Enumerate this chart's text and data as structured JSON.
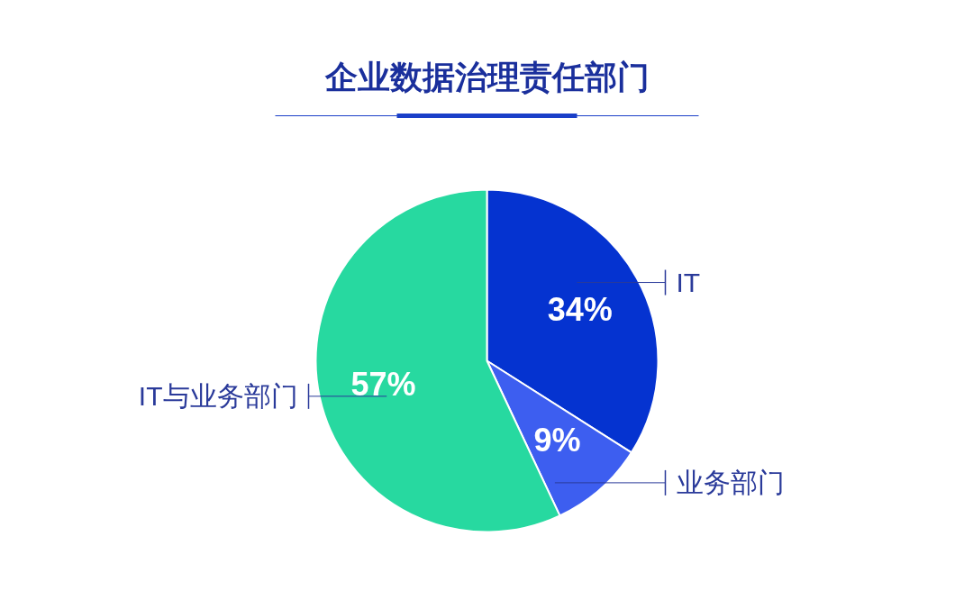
{
  "chart_data": {
    "type": "pie",
    "title": "企业数据治理责任部门",
    "categories": [
      "IT",
      "业务部门",
      "IT与业务部门"
    ],
    "values": [
      34,
      9,
      57
    ],
    "colors": [
      "#0533d0",
      "#3d5ef0",
      "#27d9a0"
    ],
    "value_labels": [
      "34%",
      "9%",
      "57%"
    ]
  }
}
